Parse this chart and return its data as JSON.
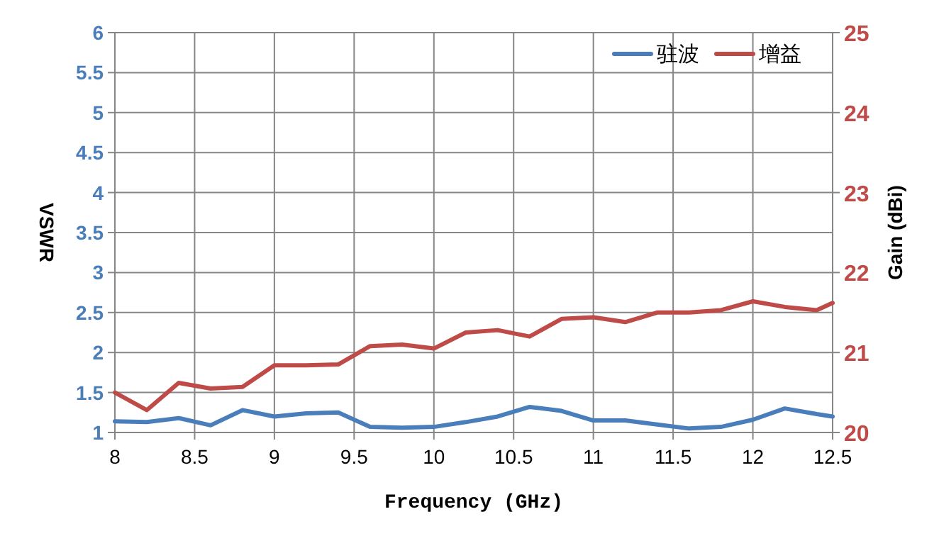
{
  "chart_data": {
    "type": "line",
    "xlabel": "Frequency (GHz)",
    "ylabel": "VSWR",
    "y2label": "Gain (dBi)",
    "x": [
      8,
      8.2,
      8.4,
      8.6,
      8.8,
      9,
      9.2,
      9.4,
      9.6,
      9.8,
      10,
      10.2,
      10.4,
      10.6,
      10.8,
      11,
      11.2,
      11.4,
      11.6,
      11.8,
      12,
      12.2,
      12.4,
      12.5
    ],
    "series": [
      {
        "name": "驻波",
        "color": "#4a7ebb",
        "values": [
          1.14,
          1.13,
          1.18,
          1.09,
          1.28,
          1.2,
          1.24,
          1.25,
          1.07,
          1.06,
          1.07,
          1.13,
          1.2,
          1.32,
          1.27,
          1.15,
          1.15,
          1.1,
          1.05,
          1.07,
          1.16,
          1.3,
          1.23,
          1.2
        ]
      },
      {
        "name": "增益",
        "color": "#be4b48",
        "axis": "y2",
        "values": [
          20.5,
          20.28,
          20.62,
          20.55,
          20.57,
          20.84,
          20.84,
          20.85,
          21.08,
          21.1,
          21.05,
          21.25,
          21.28,
          21.2,
          21.42,
          21.44,
          21.38,
          21.5,
          21.5,
          21.53,
          21.64,
          21.57,
          21.53,
          21.62
        ]
      }
    ],
    "xlim": [
      8,
      12.5
    ],
    "xticks": [
      8,
      8.5,
      9,
      9.5,
      10,
      10.5,
      11,
      11.5,
      12,
      12.5
    ],
    "ylim": [
      1,
      6
    ],
    "yticks": [
      1,
      1.5,
      2,
      2.5,
      3,
      3.5,
      4,
      4.5,
      5,
      5.5,
      6
    ],
    "y2lim": [
      20,
      25
    ],
    "y2ticks": [
      20,
      21,
      22,
      23,
      24,
      25
    ],
    "grid": true,
    "legend": "top right"
  }
}
